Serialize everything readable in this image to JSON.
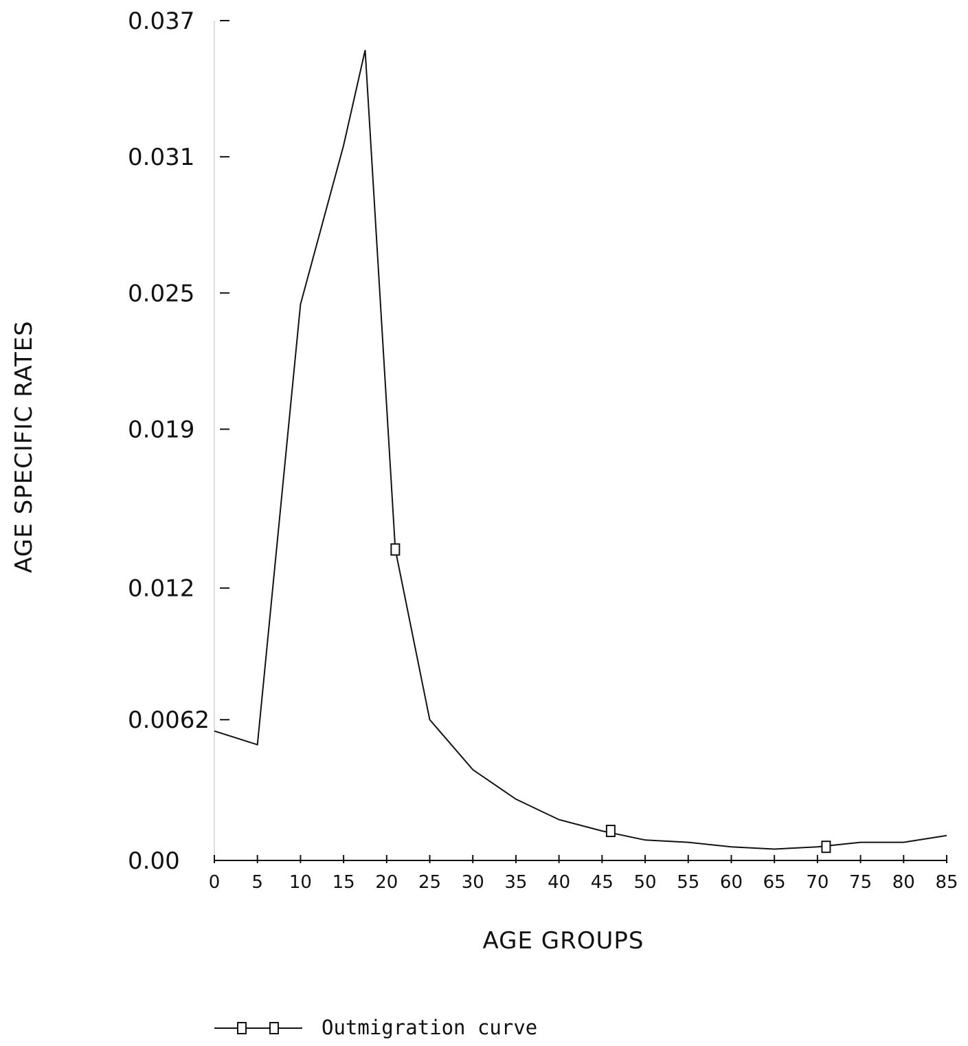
{
  "chart_data": {
    "type": "line",
    "xlabel": "AGE GROUPS",
    "ylabel": "AGE SPECIFIC RATES",
    "x_ticks": [
      "0",
      "5",
      "10",
      "15",
      "20",
      "25",
      "30",
      "35",
      "40",
      "45",
      "50",
      "55",
      "60",
      "65",
      "70",
      "75",
      "80",
      "85"
    ],
    "y_ticks": [
      "0.00",
      "0.0062",
      "0.012",
      "0.019",
      "0.025",
      "0.031",
      "0.037"
    ],
    "xlim": [
      0,
      85
    ],
    "ylim": [
      0,
      0.037
    ],
    "grid": false,
    "legend_position": "bottom",
    "series": [
      {
        "name": "Outmigration curve",
        "x": [
          0,
          5,
          10,
          15,
          17.5,
          21,
          25,
          30,
          35,
          40,
          45,
          50,
          55,
          60,
          65,
          70,
          75,
          80,
          85
        ],
        "y": [
          0.0057,
          0.0051,
          0.0245,
          0.0315,
          0.0357,
          0.0137,
          0.0062,
          0.004,
          0.0027,
          0.0018,
          0.0013,
          0.0009,
          0.0008,
          0.0006,
          0.0005,
          0.0006,
          0.0008,
          0.0008,
          0.0011
        ],
        "marker_points": [
          {
            "x": 21,
            "y": 0.0137
          },
          {
            "x": 46,
            "y": 0.0013
          },
          {
            "x": 71,
            "y": 0.0006
          }
        ],
        "color": "#111111"
      }
    ]
  }
}
